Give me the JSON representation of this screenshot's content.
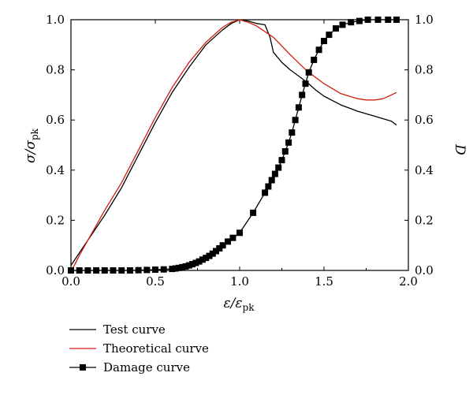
{
  "chart_data": {
    "type": "line",
    "x_axis": {
      "label_main": "ε/ε",
      "label_sub": "pk",
      "range": [
        0,
        2.0
      ],
      "ticks": [
        "0.0",
        "0.5",
        "1.0",
        "1.5",
        "2.0"
      ],
      "tick_values": [
        0,
        0.5,
        1.0,
        1.5,
        2.0
      ]
    },
    "y_left_axis": {
      "label_main": "σ/σ",
      "label_sub": "pk",
      "range": [
        0,
        1.0
      ],
      "ticks": [
        "0.0",
        "0.2",
        "0.4",
        "0.6",
        "0.8",
        "1.0"
      ],
      "tick_values": [
        0,
        0.2,
        0.4,
        0.6,
        0.8,
        1.0
      ]
    },
    "y_right_axis": {
      "label": "D",
      "range": [
        0,
        1.0
      ],
      "ticks": [
        "0.0",
        "0.2",
        "0.4",
        "0.6",
        "0.8",
        "1.0"
      ],
      "tick_values": [
        0,
        0.2,
        0.4,
        0.6,
        0.8,
        1.0
      ]
    },
    "grid": false,
    "legend_placement": "bottom-left",
    "series": [
      {
        "name": "Test curve",
        "axis": "left",
        "color": "#000000",
        "marker": "none",
        "x": [
          0,
          0.02,
          0.05,
          0.1,
          0.15,
          0.2,
          0.3,
          0.4,
          0.5,
          0.6,
          0.7,
          0.8,
          0.9,
          0.95,
          1.0,
          1.05,
          1.1,
          1.15,
          1.18,
          1.2,
          1.25,
          1.3,
          1.35,
          1.4,
          1.45,
          1.5,
          1.6,
          1.7,
          1.8,
          1.9,
          1.93
        ],
        "y": [
          0.02,
          0.04,
          0.07,
          0.12,
          0.17,
          0.22,
          0.33,
          0.46,
          0.59,
          0.71,
          0.81,
          0.9,
          0.96,
          0.985,
          1.0,
          0.995,
          0.985,
          0.98,
          0.93,
          0.87,
          0.83,
          0.8,
          0.775,
          0.75,
          0.72,
          0.695,
          0.66,
          0.635,
          0.615,
          0.595,
          0.58
        ]
      },
      {
        "name": "Theoretical curve",
        "axis": "left",
        "color": "#d01e10",
        "marker": "none",
        "x": [
          0,
          0.02,
          0.05,
          0.1,
          0.15,
          0.2,
          0.3,
          0.4,
          0.5,
          0.6,
          0.7,
          0.8,
          0.9,
          0.95,
          1.0,
          1.05,
          1.1,
          1.2,
          1.3,
          1.4,
          1.5,
          1.6,
          1.7,
          1.75,
          1.8,
          1.85,
          1.9,
          1.93
        ],
        "y": [
          0.0,
          0.02,
          0.06,
          0.12,
          0.18,
          0.24,
          0.35,
          0.48,
          0.61,
          0.73,
          0.83,
          0.91,
          0.97,
          0.99,
          1.0,
          0.99,
          0.975,
          0.93,
          0.86,
          0.795,
          0.745,
          0.705,
          0.685,
          0.68,
          0.68,
          0.685,
          0.7,
          0.71
        ]
      },
      {
        "name": "Damage curve",
        "axis": "right",
        "color": "#000000",
        "marker": "square",
        "x": [
          0,
          0.05,
          0.1,
          0.15,
          0.2,
          0.25,
          0.3,
          0.35,
          0.4,
          0.45,
          0.5,
          0.55,
          0.6,
          0.62,
          0.64,
          0.66,
          0.68,
          0.7,
          0.72,
          0.74,
          0.76,
          0.78,
          0.8,
          0.82,
          0.84,
          0.86,
          0.88,
          0.9,
          0.93,
          0.96,
          1.0,
          1.08,
          1.15,
          1.17,
          1.19,
          1.21,
          1.23,
          1.25,
          1.27,
          1.29,
          1.31,
          1.33,
          1.35,
          1.37,
          1.39,
          1.41,
          1.44,
          1.47,
          1.5,
          1.53,
          1.57,
          1.61,
          1.66,
          1.71,
          1.76,
          1.82,
          1.88,
          1.93
        ],
        "y": [
          0.0,
          0.0,
          0.0,
          0.0,
          0.0,
          0.0,
          0.0,
          0.0,
          0.001,
          0.002,
          0.003,
          0.004,
          0.006,
          0.008,
          0.01,
          0.013,
          0.016,
          0.02,
          0.025,
          0.03,
          0.036,
          0.043,
          0.05,
          0.058,
          0.067,
          0.077,
          0.088,
          0.1,
          0.115,
          0.13,
          0.15,
          0.23,
          0.31,
          0.335,
          0.36,
          0.385,
          0.41,
          0.44,
          0.475,
          0.51,
          0.55,
          0.6,
          0.65,
          0.7,
          0.745,
          0.79,
          0.84,
          0.88,
          0.915,
          0.94,
          0.965,
          0.98,
          0.99,
          0.995,
          1.0,
          1.0,
          1.0,
          1.0
        ]
      }
    ]
  }
}
